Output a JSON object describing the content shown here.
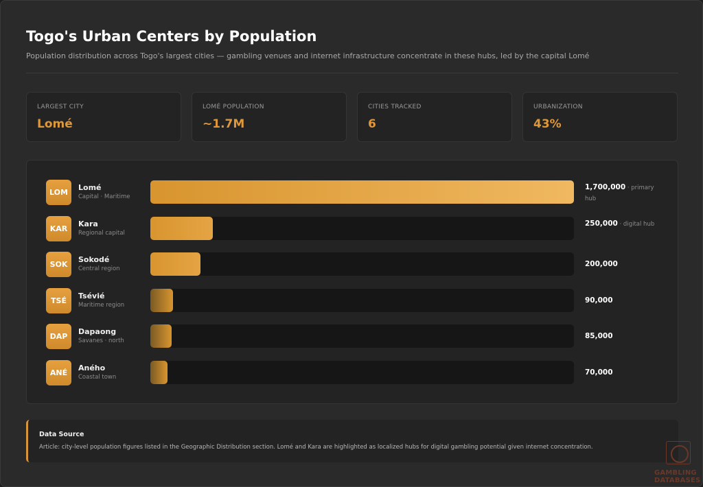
{
  "header": {
    "title": "Togo's Urban Centers by Population",
    "subtitle": "Population distribution across Togo's largest cities — gambling venues and internet infrastructure concentrate in these hubs, led by the capital Lomé"
  },
  "stats": [
    {
      "label": "LARGEST CITY",
      "value": "Lomé"
    },
    {
      "label": "LOMÉ POPULATION",
      "value": "~1.7M"
    },
    {
      "label": "CITIES TRACKED",
      "value": "6"
    },
    {
      "label": "URBANIZATION",
      "value": "43%"
    }
  ],
  "chart_data": {
    "type": "bar",
    "orientation": "horizontal",
    "categories": [
      "Lomé",
      "Kara",
      "Sokodé",
      "Tsévié",
      "Dapaong",
      "Aného"
    ],
    "codes": [
      "LOM",
      "KAR",
      "SOK",
      "TSÉ",
      "DAP",
      "ANÉ"
    ],
    "descriptions": [
      "Capital · Maritime",
      "Regional capital",
      "Central region",
      "Maritime region",
      "Savanes · north",
      "Coastal town"
    ],
    "values": [
      1700000,
      250000,
      200000,
      90000,
      85000,
      70000
    ],
    "value_labels": [
      "1,700,000",
      "250,000",
      "200,000",
      "90,000",
      "85,000",
      "70,000"
    ],
    "notes": [
      "· primary hub",
      "· digital hub",
      "",
      "",
      "",
      ""
    ],
    "xlim": [
      0,
      1700000
    ],
    "colors": {
      "bar_bright": "#f0b860",
      "bar_mid": "#d8952f",
      "bar_dim": "#7a5a24",
      "track": "#161616"
    }
  },
  "source": {
    "title": "Data Source",
    "text": "Article: city-level population figures listed in the Geographic Distribution section. Lomé and Kara are highlighted as localized hubs for digital gambling potential given internet concentration."
  },
  "logo": {
    "line1": "GAMBLING",
    "line2": "DATABASES"
  }
}
